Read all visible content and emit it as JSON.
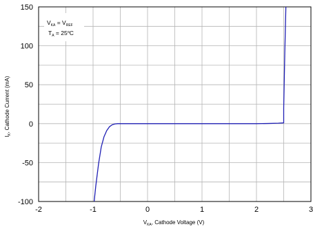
{
  "chart_data": {
    "type": "line",
    "xlabel": {
      "main": "V",
      "sub": "KA",
      "rest": ", Cathode  Voltage (V)"
    },
    "ylabel": {
      "main": "I",
      "sub": "K",
      "rest": ", Cathode   Current (mA)"
    },
    "xlim": [
      -2,
      3
    ],
    "ylim": [
      -100,
      150
    ],
    "x_ticks": [
      -2,
      -1,
      0,
      1,
      2,
      3
    ],
    "x_tick_labels": [
      "-2",
      "-1",
      "0",
      "1",
      "2",
      "3"
    ],
    "y_ticks": [
      -100,
      -50,
      0,
      50,
      100,
      150
    ],
    "y_tick_labels": [
      "-100",
      "-50",
      "0",
      "50",
      "100",
      "150"
    ],
    "x_minor_step": 0.5,
    "y_minor_step": 25,
    "grid": true,
    "legend_box": {
      "line1": {
        "a": "V",
        "a_sub": "KA",
        "eq": " = V",
        "b_sub": "REF"
      },
      "line2": {
        "a": "T",
        "a_sub": "A",
        "eq": " = 25",
        "sup": "o",
        "unit": "C"
      },
      "position": "top-left"
    },
    "series": [
      {
        "color": "#1f1fb4",
        "x": [
          -0.98,
          -0.95,
          -0.9,
          -0.85,
          -0.8,
          -0.75,
          -0.7,
          -0.65,
          -0.6,
          -0.55,
          -0.5,
          0,
          0.5,
          1.0,
          1.5,
          2.0,
          2.2,
          2.4,
          2.5,
          2.5,
          2.52,
          2.54
        ],
        "y": [
          -100,
          -80,
          -52,
          -30,
          -17,
          -9,
          -4,
          -1.5,
          -0.4,
          0,
          0,
          0,
          0,
          0,
          0,
          0,
          0.2,
          0.6,
          1.0,
          20,
          90,
          150
        ]
      }
    ]
  }
}
